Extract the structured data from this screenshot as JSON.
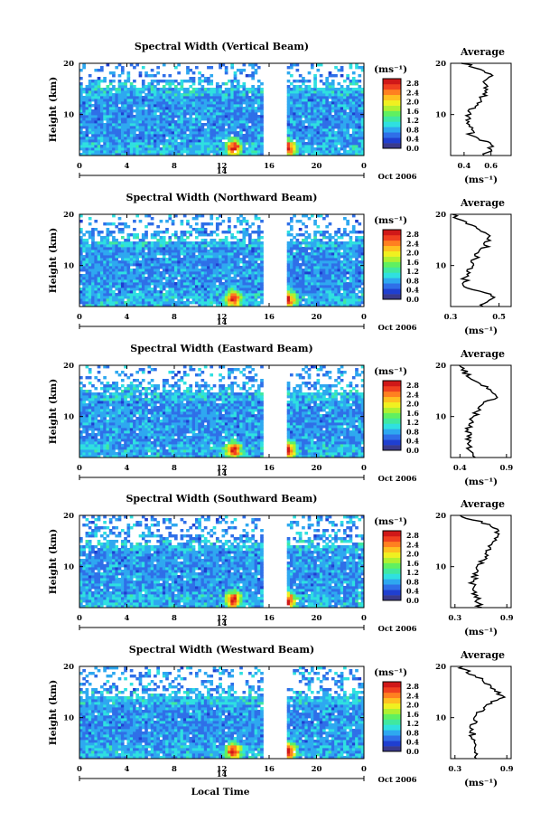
{
  "chart_data": [
    {
      "type": "heatmap",
      "title": "Spectral Width (Vertical Beam)",
      "ylabel": "Height (km)",
      "y_ticks": [
        "20",
        "10"
      ],
      "x_ticks": [
        "0",
        "4",
        "8",
        "12",
        "16",
        "20",
        "0"
      ],
      "date_label": "Oct 2006",
      "day_label": "14",
      "ylim": [
        2,
        20
      ],
      "xlim": [
        0,
        24
      ],
      "data_gap_hours": [
        15.7,
        17.4
      ],
      "hotspots": [
        {
          "x": 13.0,
          "y": 3.5
        },
        {
          "x": 17.6,
          "y": 3.5
        }
      ],
      "colorbar": {
        "unit_label": "(ms⁻¹)",
        "ticks": [
          "2.8",
          "2.4",
          "2.0",
          "1.6",
          "1.2",
          "0.8",
          "0.4",
          "0.0"
        ],
        "range": [
          0,
          3.0
        ]
      },
      "average": {
        "title": "Average",
        "xlabel": "(ms⁻¹)",
        "x_ticks": [
          "0.4",
          "0.6"
        ],
        "y_ticks": [
          "20",
          "10"
        ],
        "xlim": [
          0.3,
          0.75
        ],
        "heights": [
          2,
          4,
          6,
          8,
          10,
          12,
          14,
          16,
          18,
          20
        ],
        "values": [
          0.55,
          0.62,
          0.45,
          0.45,
          0.42,
          0.5,
          0.55,
          0.55,
          0.6,
          0.4
        ]
      }
    },
    {
      "type": "heatmap",
      "title": "Spectral Width (Northward Beam)",
      "ylabel": "Height (km)",
      "y_ticks": [
        "20",
        "10"
      ],
      "x_ticks": [
        "0",
        "4",
        "8",
        "12",
        "16",
        "20",
        "0"
      ],
      "date_label": "Oct 2006",
      "day_label": "14",
      "ylim": [
        2,
        20
      ],
      "xlim": [
        0,
        24
      ],
      "data_gap_hours": [
        15.7,
        17.4
      ],
      "hotspots": [
        {
          "x": 13.0,
          "y": 3.5
        },
        {
          "x": 17.6,
          "y": 3.5
        }
      ],
      "colorbar": {
        "unit_label": "(ms⁻¹)",
        "ticks": [
          "2.8",
          "2.4",
          "2.0",
          "1.6",
          "1.2",
          "0.8",
          "0.4",
          "0.0"
        ],
        "range": [
          0,
          3.0
        ]
      },
      "average": {
        "title": "Average",
        "xlabel": "(ms⁻¹)",
        "x_ticks": [
          "0.3",
          "0.5"
        ],
        "y_ticks": [
          "20",
          "10"
        ],
        "xlim": [
          0.3,
          0.55
        ],
        "heights": [
          2,
          4,
          6,
          8,
          10,
          12,
          14,
          16,
          18,
          20
        ],
        "values": [
          0.43,
          0.48,
          0.36,
          0.36,
          0.38,
          0.41,
          0.45,
          0.45,
          0.38,
          0.3
        ]
      }
    },
    {
      "type": "heatmap",
      "title": "Spectral Width (Eastward Beam)",
      "ylabel": "Height (km)",
      "y_ticks": [
        "20",
        "10"
      ],
      "x_ticks": [
        "0",
        "4",
        "8",
        "12",
        "16",
        "20",
        "0"
      ],
      "date_label": "Oct 2006",
      "day_label": "14",
      "ylim": [
        2,
        20
      ],
      "xlim": [
        0,
        24
      ],
      "data_gap_hours": [
        15.7,
        17.4
      ],
      "hotspots": [
        {
          "x": 13.0,
          "y": 3.5
        },
        {
          "x": 17.6,
          "y": 3.5
        }
      ],
      "colorbar": {
        "unit_label": "(ms⁻¹)",
        "ticks": [
          "2.8",
          "2.4",
          "2.0",
          "1.6",
          "1.2",
          "0.8",
          "0.4",
          "0.0"
        ],
        "range": [
          0,
          3.0
        ]
      },
      "average": {
        "title": "Average",
        "xlabel": "(ms⁻¹)",
        "x_ticks": [
          "0.4",
          "0.9"
        ],
        "y_ticks": [
          "20",
          "10"
        ],
        "xlim": [
          0.3,
          0.95
        ],
        "heights": [
          2,
          4,
          6,
          8,
          10,
          12,
          14,
          16,
          18,
          20
        ],
        "values": [
          0.55,
          0.5,
          0.48,
          0.5,
          0.55,
          0.6,
          0.8,
          0.65,
          0.48,
          0.4
        ]
      }
    },
    {
      "type": "heatmap",
      "title": "Spectral Width (Southward Beam)",
      "ylabel": "Height (km)",
      "y_ticks": [
        "20",
        "10"
      ],
      "x_ticks": [
        "0",
        "4",
        "8",
        "12",
        "16",
        "20",
        "0"
      ],
      "date_label": "Oct 2006",
      "day_label": "14",
      "ylim": [
        2,
        20
      ],
      "xlim": [
        0,
        24
      ],
      "data_gap_hours": [
        15.7,
        17.4
      ],
      "hotspots": [
        {
          "x": 13.0,
          "y": 3.5
        },
        {
          "x": 17.6,
          "y": 3.5
        }
      ],
      "colorbar": {
        "unit_label": "(ms⁻¹)",
        "ticks": [
          "2.8",
          "2.4",
          "2.0",
          "1.6",
          "1.2",
          "0.8",
          "0.4",
          "0.0"
        ],
        "range": [
          0,
          3.0
        ]
      },
      "average": {
        "title": "Average",
        "xlabel": "(ms⁻¹)",
        "x_ticks": [
          "0.3",
          "0.9"
        ],
        "y_ticks": [
          "20",
          "10"
        ],
        "xlim": [
          0.25,
          0.95
        ],
        "heights": [
          2,
          4,
          6,
          8,
          10,
          12,
          14,
          16,
          18,
          20
        ],
        "values": [
          0.58,
          0.55,
          0.5,
          0.52,
          0.58,
          0.65,
          0.72,
          0.8,
          0.75,
          0.35
        ]
      }
    },
    {
      "type": "heatmap",
      "title": "Spectral Width (Westward Beam)",
      "ylabel": "Height (km)",
      "y_ticks": [
        "20",
        "10"
      ],
      "x_ticks": [
        "0",
        "4",
        "8",
        "12",
        "16",
        "20",
        "0"
      ],
      "date_label": "Oct 2006",
      "day_label": "14",
      "ylim": [
        2,
        20
      ],
      "xlim": [
        0,
        24
      ],
      "data_gap_hours": [
        15.7,
        17.4
      ],
      "hotspots": [
        {
          "x": 13.0,
          "y": 3.5
        },
        {
          "x": 17.6,
          "y": 3.5
        }
      ],
      "colorbar": {
        "unit_label": "(ms⁻¹)",
        "ticks": [
          "2.8",
          "2.4",
          "2.0",
          "1.6",
          "1.2",
          "0.8",
          "0.4",
          "0.0"
        ],
        "range": [
          0,
          3.0
        ]
      },
      "average": {
        "title": "Average",
        "xlabel": "(ms⁻¹)",
        "x_ticks": [
          "0.3",
          "0.9"
        ],
        "y_ticks": [
          "20",
          "10"
        ],
        "xlim": [
          0.25,
          0.95
        ],
        "heights": [
          2,
          4,
          6,
          8,
          10,
          12,
          14,
          16,
          18,
          20
        ],
        "values": [
          0.55,
          0.52,
          0.5,
          0.5,
          0.55,
          0.62,
          0.85,
          0.7,
          0.55,
          0.35
        ]
      }
    }
  ],
  "xlabel": "Local Time",
  "colormap": [
    "#3a3a8c",
    "#1f3fd0",
    "#2f6fe8",
    "#2ea8f0",
    "#2fe0e0",
    "#40e8a0",
    "#60f060",
    "#b0f030",
    "#f0f020",
    "#ffc020",
    "#ff8020",
    "#f04020",
    "#d01818"
  ]
}
